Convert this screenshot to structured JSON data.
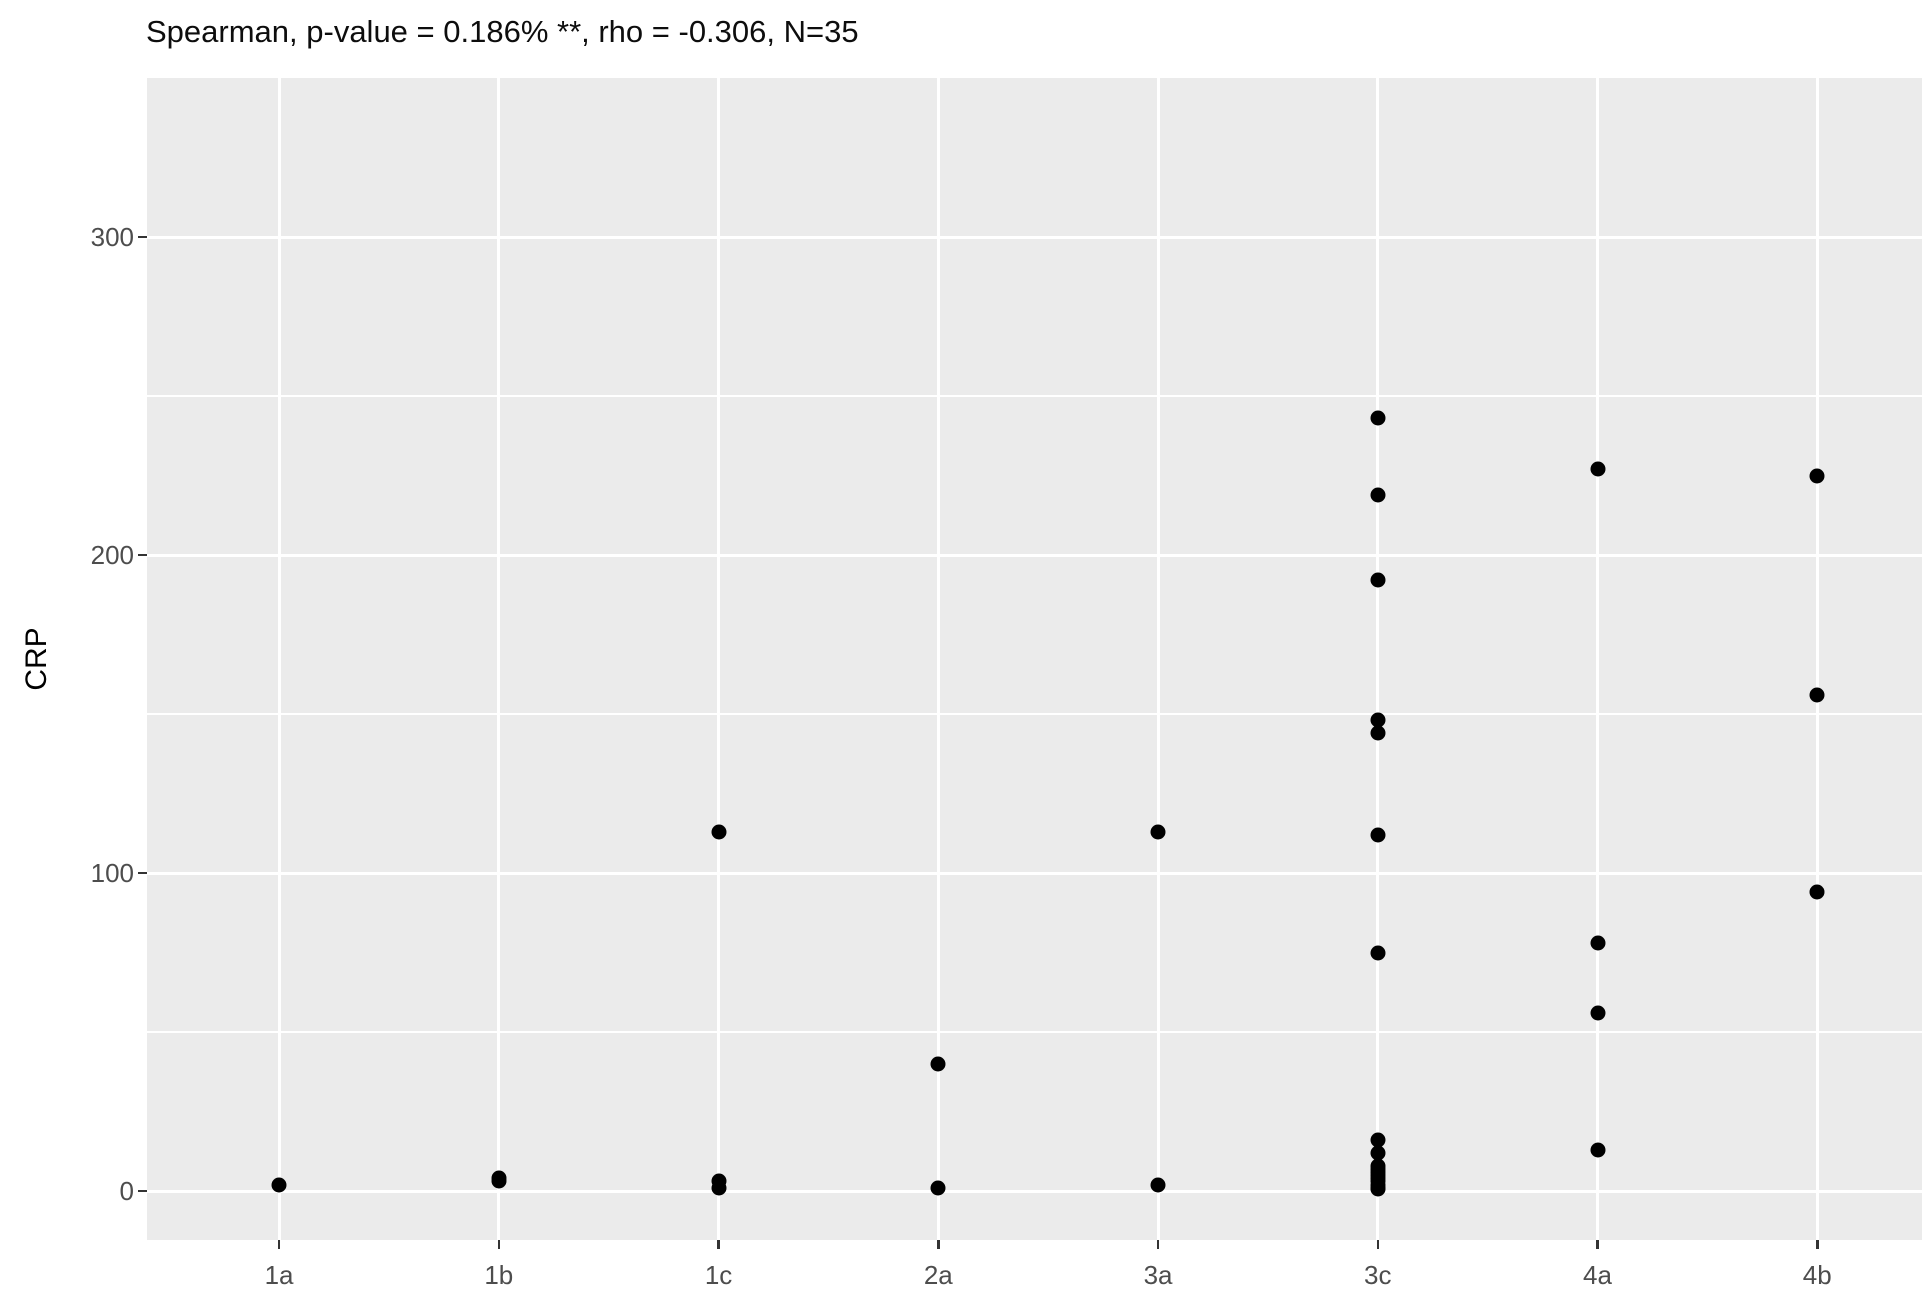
{
  "chart_data": {
    "type": "scatter",
    "title": "Spearman, p-value = 0.186% **, rho = -0.306, N=35",
    "xlabel": "",
    "ylabel": "CRP",
    "n_label": "N=35",
    "rho": -0.306,
    "p_value_label": "0.186% **",
    "categories": [
      "1a",
      "1b",
      "1c",
      "2a",
      "3a",
      "3c",
      "4a",
      "4b"
    ],
    "y_ticks": [
      0,
      100,
      200,
      300
    ],
    "y_minor_ticks": [
      50,
      150,
      250
    ],
    "ylim": [
      -15.4,
      350
    ],
    "grid": "on",
    "legend": "none",
    "points_by_category": [
      {
        "category": "1a",
        "values": [
          2
        ]
      },
      {
        "category": "1b",
        "values": [
          3,
          4
        ]
      },
      {
        "category": "1c",
        "values": [
          113,
          3,
          1
        ]
      },
      {
        "category": "2a",
        "values": [
          40,
          1
        ]
      },
      {
        "category": "3a",
        "values": [
          113,
          2
        ]
      },
      {
        "category": "3c",
        "values": [
          243,
          219,
          192,
          148,
          144,
          112,
          75,
          16,
          12,
          8,
          7,
          6,
          5,
          4,
          3,
          2,
          1,
          0.5
        ]
      },
      {
        "category": "4a",
        "values": [
          227,
          78,
          56,
          13
        ]
      },
      {
        "category": "4b",
        "values": [
          225,
          156,
          94
        ]
      }
    ]
  },
  "style": {
    "panel_bg": "#ebebeb",
    "grid_color": "#ffffff",
    "point_color": "#000000",
    "tick_label_color": "#4d4d4d",
    "tick_mark_color": "#333333",
    "title_color": "#0d0d0d"
  }
}
